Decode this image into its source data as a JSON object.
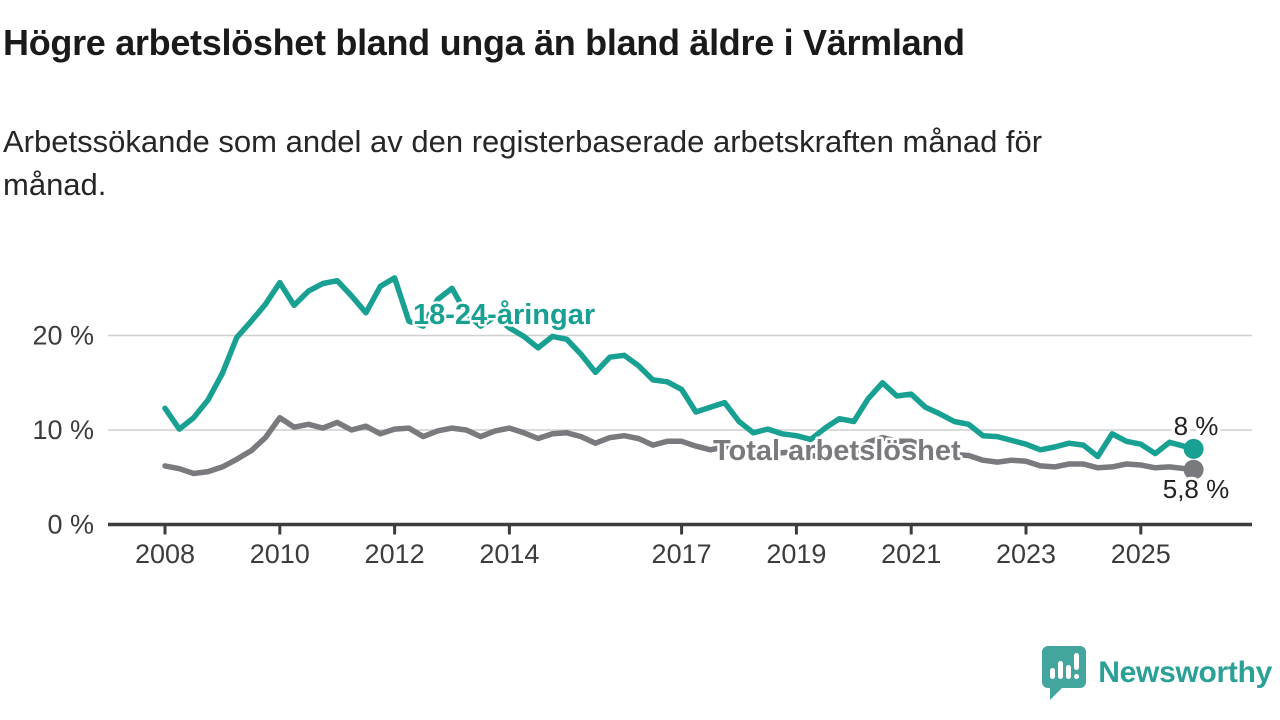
{
  "header": {
    "title": "Högre arbetslöshet bland unga än bland äldre i Värmland",
    "subtitle_lines": [
      "Arbetssökande som andel av den registerbaserade arbetskraften månad för",
      "månad."
    ]
  },
  "chart_data": {
    "type": "line",
    "title": "Högre arbetslöshet bland unga än bland äldre i Värmland",
    "subtitle": "Arbetssökande som andel av den registerbaserade arbetskraften månad för månad.",
    "x_axis": {
      "ticks": [
        2008,
        2010,
        2012,
        2014,
        2017,
        2019,
        2021,
        2023,
        2025
      ],
      "tick_labels": [
        "2008",
        "2010",
        "2012",
        "2014",
        "2017",
        "2019",
        "2021",
        "2023",
        "2025"
      ],
      "range": [
        2007.0,
        2026.9
      ]
    },
    "y_axis": {
      "ticks": [
        0,
        10,
        20
      ],
      "tick_labels": [
        "0 %",
        "10 %",
        "20 %"
      ],
      "gridlines": [
        10,
        20
      ],
      "range": [
        0,
        28
      ],
      "grid_color": "#cfcfcf",
      "axis_color": "#3c3c3c"
    },
    "legend_position": "inline-labels",
    "series": [
      {
        "name": "18-24-åringar",
        "color": "#18a092",
        "end_label": "8 %",
        "x": [
          2008.0,
          2008.25,
          2008.5,
          2008.75,
          2009.0,
          2009.25,
          2009.5,
          2009.75,
          2010.0,
          2010.25,
          2010.5,
          2010.75,
          2011.0,
          2011.25,
          2011.5,
          2011.75,
          2012.0,
          2012.25,
          2012.5,
          2012.75,
          2013.0,
          2013.25,
          2013.5,
          2013.75,
          2014.0,
          2014.25,
          2014.5,
          2014.75,
          2015.0,
          2015.25,
          2015.5,
          2015.75,
          2016.0,
          2016.25,
          2016.5,
          2016.75,
          2017.0,
          2017.25,
          2017.5,
          2017.75,
          2018.0,
          2018.25,
          2018.5,
          2018.75,
          2019.0,
          2019.25,
          2019.5,
          2019.75,
          2020.0,
          2020.25,
          2020.5,
          2020.75,
          2021.0,
          2021.25,
          2021.5,
          2021.75,
          2022.0,
          2022.25,
          2022.5,
          2022.75,
          2023.0,
          2023.25,
          2023.5,
          2023.75,
          2024.0,
          2024.25,
          2024.5,
          2024.75,
          2025.0,
          2025.25,
          2025.5,
          2025.92
        ],
        "values": [
          12.3,
          10.1,
          11.3,
          13.2,
          16.0,
          19.8,
          21.5,
          23.3,
          25.6,
          23.2,
          24.7,
          25.5,
          25.8,
          24.2,
          22.4,
          25.2,
          26.1,
          21.5,
          21.0,
          23.8,
          25.0,
          22.3,
          21.0,
          22.0,
          20.8,
          19.9,
          18.7,
          19.9,
          19.6,
          18.0,
          16.1,
          17.7,
          17.9,
          16.8,
          15.3,
          15.1,
          14.3,
          11.9,
          12.4,
          12.9,
          10.9,
          9.7,
          10.1,
          9.6,
          9.4,
          9.0,
          10.2,
          11.2,
          10.9,
          13.3,
          15.0,
          13.6,
          13.8,
          12.4,
          11.7,
          10.9,
          10.6,
          9.4,
          9.3,
          8.9,
          8.5,
          7.9,
          8.2,
          8.6,
          8.4,
          7.2,
          9.6,
          8.8,
          8.5,
          7.5,
          8.7,
          8.0
        ]
      },
      {
        "name": "Total arbetslöshet",
        "color": "#797a7d",
        "end_label": "5,8 %",
        "x": [
          2008.0,
          2008.25,
          2008.5,
          2008.75,
          2009.0,
          2009.25,
          2009.5,
          2009.75,
          2010.0,
          2010.25,
          2010.5,
          2010.75,
          2011.0,
          2011.25,
          2011.5,
          2011.75,
          2012.0,
          2012.25,
          2012.5,
          2012.75,
          2013.0,
          2013.25,
          2013.5,
          2013.75,
          2014.0,
          2014.25,
          2014.5,
          2014.75,
          2015.0,
          2015.25,
          2015.5,
          2015.75,
          2016.0,
          2016.25,
          2016.5,
          2016.75,
          2017.0,
          2017.25,
          2017.5,
          2017.75,
          2018.0,
          2018.25,
          2018.5,
          2018.75,
          2019.0,
          2019.25,
          2019.5,
          2019.75,
          2020.0,
          2020.25,
          2020.5,
          2020.75,
          2021.0,
          2021.25,
          2021.5,
          2021.75,
          2022.0,
          2022.25,
          2022.5,
          2022.75,
          2023.0,
          2023.25,
          2023.5,
          2023.75,
          2024.0,
          2024.25,
          2024.5,
          2024.75,
          2025.0,
          2025.25,
          2025.5,
          2025.92
        ],
        "values": [
          6.2,
          5.9,
          5.4,
          5.6,
          6.1,
          6.9,
          7.8,
          9.2,
          11.3,
          10.3,
          10.6,
          10.2,
          10.8,
          10.0,
          10.4,
          9.6,
          10.1,
          10.2,
          9.3,
          9.9,
          10.2,
          10.0,
          9.3,
          9.9,
          10.2,
          9.7,
          9.1,
          9.6,
          9.7,
          9.3,
          8.6,
          9.2,
          9.4,
          9.1,
          8.4,
          8.8,
          8.8,
          8.3,
          7.9,
          8.2,
          8.3,
          7.8,
          7.4,
          7.6,
          7.7,
          7.3,
          7.1,
          7.5,
          7.6,
          8.7,
          9.2,
          8.8,
          8.8,
          8.2,
          7.7,
          7.4,
          7.3,
          6.8,
          6.6,
          6.8,
          6.7,
          6.2,
          6.1,
          6.4,
          6.4,
          6.0,
          6.1,
          6.4,
          6.3,
          6.0,
          6.1,
          5.8
        ]
      }
    ]
  },
  "footer": {
    "brand": "Newsworthy",
    "brand_text_color": "#2aa096",
    "brand_icon_color": "#43a69e"
  }
}
